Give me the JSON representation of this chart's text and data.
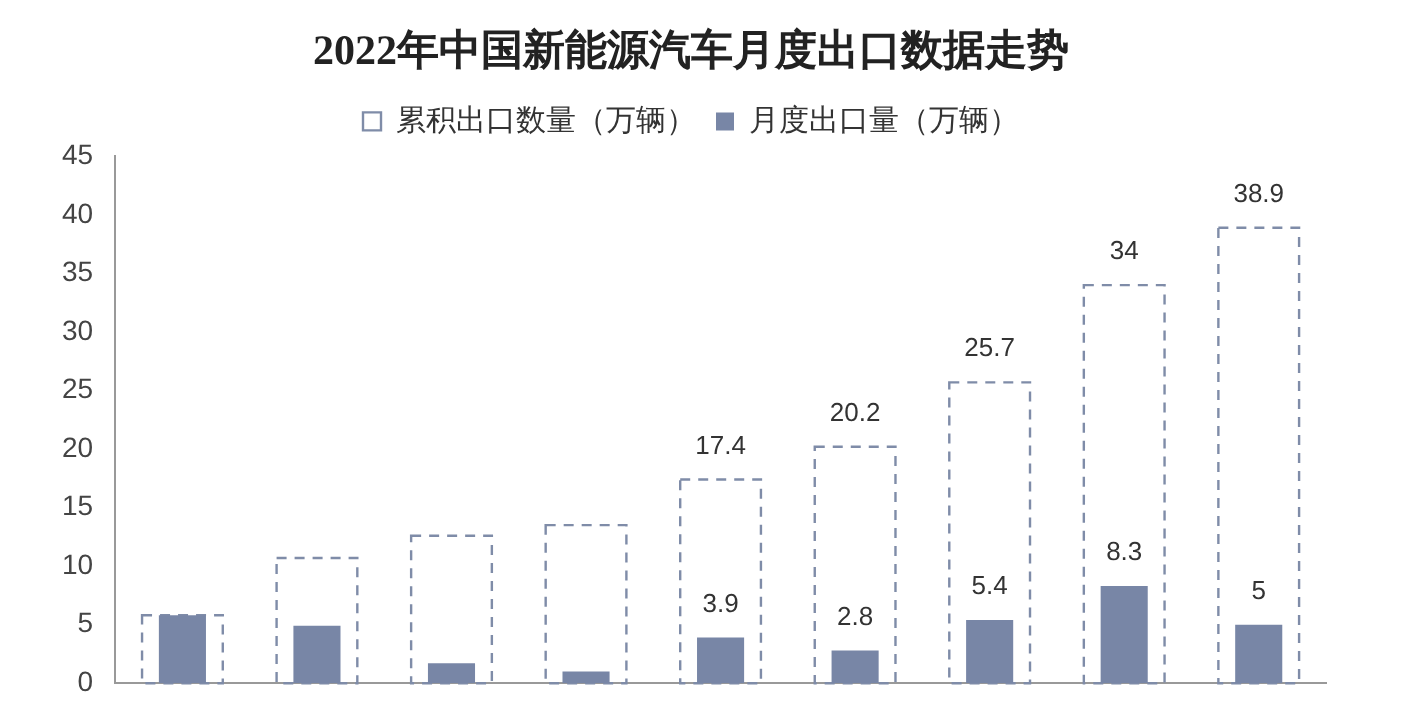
{
  "chart_data": {
    "type": "bar",
    "title": "2022年中国新能源汽车月度出口数据走势",
    "categories": [
      null,
      null,
      null,
      null,
      null,
      null,
      null,
      null,
      null
    ],
    "series": [
      {
        "name": "累积出口数量（万辆）",
        "color": "#7f8ca8",
        "line_style": "dashed",
        "values": [
          5.8,
          10.7,
          12.6,
          13.5,
          17.4,
          20.2,
          25.7,
          34,
          38.9
        ],
        "value_labels": [
          null,
          null,
          null,
          null,
          "17.4",
          "20.2",
          "25.7",
          "34",
          "38.9"
        ]
      },
      {
        "name": "月度出口量（万辆）",
        "color": "#7886a6",
        "values": [
          5.8,
          4.9,
          1.7,
          1.0,
          3.9,
          2.8,
          5.4,
          8.3,
          5
        ],
        "value_labels": [
          null,
          null,
          null,
          null,
          "3.9",
          "2.8",
          "5.4",
          "8.3",
          "5"
        ]
      }
    ],
    "ylim": [
      0,
      45
    ],
    "yticks": [
      0,
      5,
      10,
      15,
      20,
      25,
      30,
      35,
      40,
      45
    ],
    "grid": false,
    "legend": "top"
  }
}
